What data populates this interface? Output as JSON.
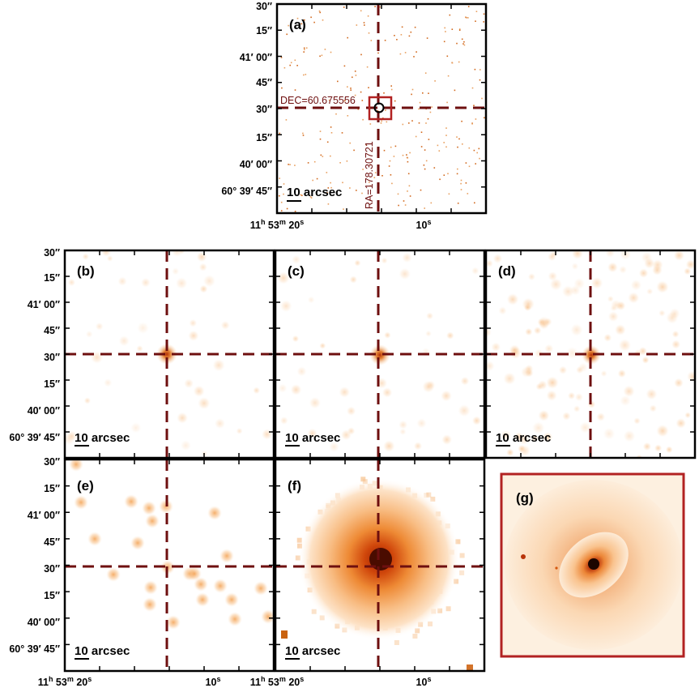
{
  "colors": {
    "crosshair": "#6e0f0f",
    "box": "#b22222",
    "glow": "#f5a255",
    "core": "#c43a08",
    "frame": "#000000"
  },
  "chart_data": [
    {
      "type": "heatmap",
      "panel": "(a)",
      "annotations": [
        "DEC=60.675556",
        "RA=178.30721"
      ],
      "scale_bar": "10 arcsec",
      "ytick_labels": [
        "30″",
        "15″",
        "41′ 00″",
        "45″",
        "30″",
        "15″",
        "40′ 00″",
        "60° 39′ 45″"
      ],
      "xtick_labels": [
        "11h 53m 20s",
        "10s"
      ],
      "crosshair": {
        "ra_deg": 178.30721,
        "dec_deg": 60.675556
      }
    },
    {
      "type": "heatmap",
      "panel": "(b)",
      "scale_bar": "10 arcsec"
    },
    {
      "type": "heatmap",
      "panel": "(c)",
      "scale_bar": "10 arcsec"
    },
    {
      "type": "heatmap",
      "panel": "(d)",
      "scale_bar": "10 arcsec"
    },
    {
      "type": "heatmap",
      "panel": "(e)",
      "scale_bar": "10 arcsec"
    },
    {
      "type": "heatmap",
      "panel": "(f)",
      "scale_bar": "10 arcsec"
    },
    {
      "type": "heatmap",
      "panel": "(g)"
    }
  ],
  "axes": {
    "ytick_labels": [
      "30″",
      "15″",
      "41′ 00″",
      "45″",
      "30″",
      "15″",
      "40′ 00″",
      "60° 39′ 45″"
    ],
    "x_main": "11",
    "x_main_h": "h",
    "x_main_53": " 53",
    "x_main_m": "m",
    "x_main_20": " 20",
    "x_main_s": "s",
    "x_ten": "10",
    "x_ten_s": "s"
  },
  "panels": {
    "a": {
      "label": "(a)",
      "scale": "10 arcsec",
      "dec": "DEC=60.675556",
      "ra": "RA=178.30721"
    },
    "b": {
      "label": "(b)",
      "scale": "10 arcsec"
    },
    "c": {
      "label": "(c)",
      "scale": "10 arcsec"
    },
    "d": {
      "label": "(d)",
      "scale": "10 arcsec"
    },
    "e": {
      "label": "(e)",
      "scale": "10 arcsec"
    },
    "f": {
      "label": "(f)",
      "scale": "10 arcsec"
    },
    "g": {
      "label": "(g)"
    }
  }
}
